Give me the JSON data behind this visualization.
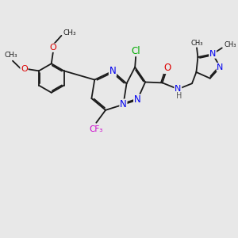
{
  "bg_color": "#e8e8e8",
  "bond_color": "#1a1a1a",
  "bond_width": 1.3,
  "atom_colors": {
    "N": "#0000ee",
    "O": "#dd0000",
    "F": "#cc00cc",
    "Cl": "#00aa00",
    "H": "#555555",
    "C": "#1a1a1a"
  },
  "font_size": 7.5,
  "fig_size": [
    3.0,
    3.0
  ],
  "dpi": 100,
  "xlim": [
    0,
    10
  ],
  "ylim": [
    0,
    10
  ]
}
